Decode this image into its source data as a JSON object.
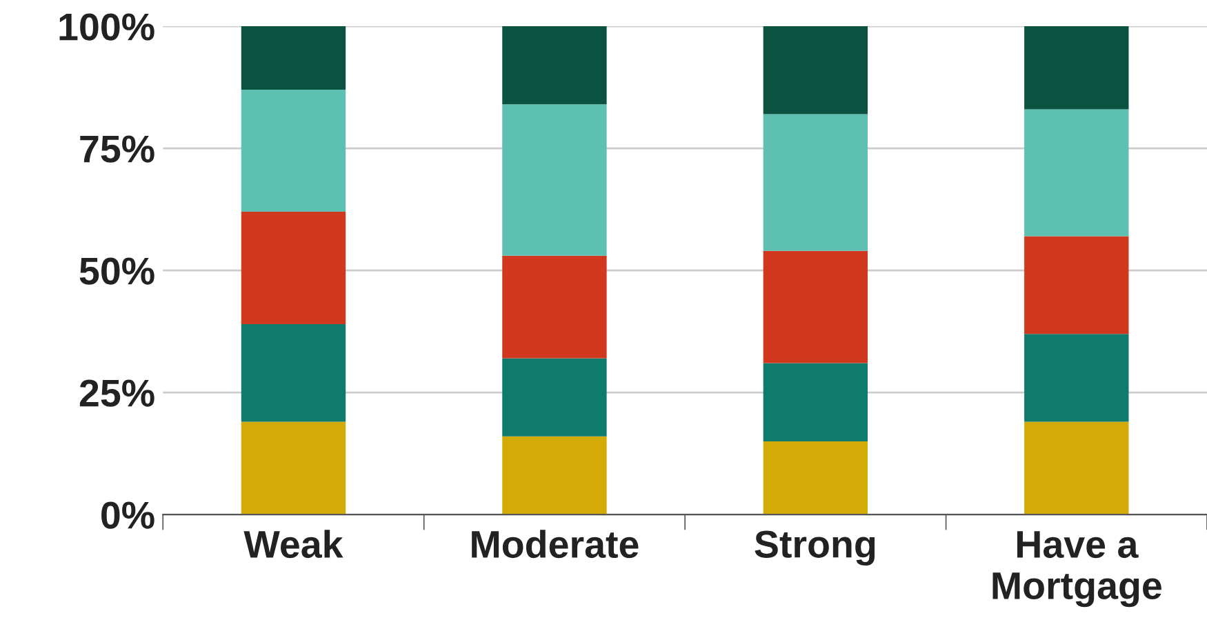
{
  "chart_data": {
    "type": "bar",
    "stacked": true,
    "categories": [
      "Weak",
      "Moderate",
      "Strong",
      "Have a\nMortgage"
    ],
    "series": [
      {
        "color": "#d4aa06",
        "values": [
          19,
          16,
          15,
          19
        ]
      },
      {
        "color": "#0e7b6c",
        "values": [
          20,
          16,
          16,
          18
        ]
      },
      {
        "color": "#d0391d",
        "values": [
          23,
          21,
          23,
          20
        ]
      },
      {
        "color": "#5ebfb3",
        "values": [
          25,
          31,
          28,
          26
        ]
      },
      {
        "color": "#0b5241",
        "values": [
          13,
          16,
          18,
          17
        ]
      }
    ],
    "ylim": [
      0,
      100
    ],
    "yticks": [
      {
        "value": 0,
        "label": "0%"
      },
      {
        "value": 25,
        "label": "25%"
      },
      {
        "value": 50,
        "label": "50%"
      },
      {
        "value": 75,
        "label": "75%"
      },
      {
        "value": 100,
        "label": "100%"
      }
    ],
    "grid": "y"
  }
}
